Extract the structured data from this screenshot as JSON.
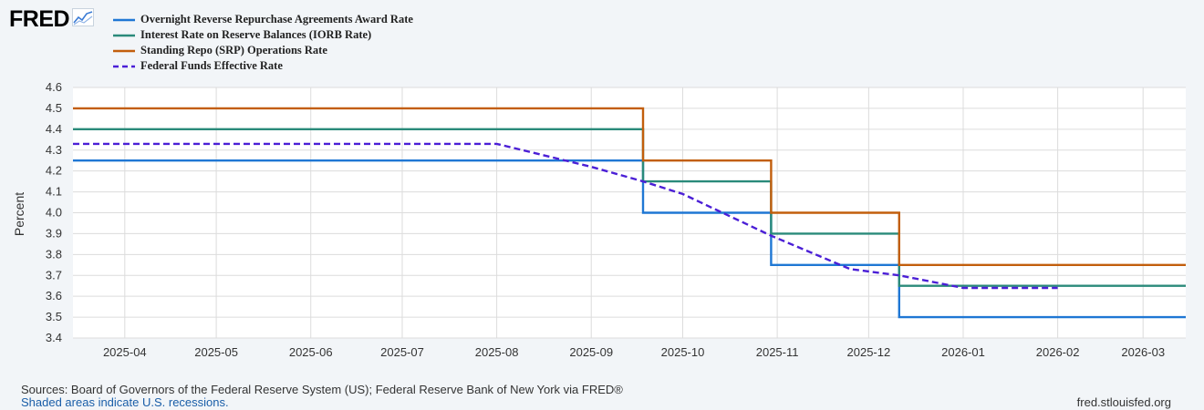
{
  "brand": {
    "logo_text": "FRED",
    "logo_icon": "chart-line-icon"
  },
  "chart_data": {
    "type": "line",
    "ylabel": "Percent",
    "ylim": [
      3.4,
      4.6
    ],
    "yticks": [
      "3.4",
      "3.5",
      "3.6",
      "3.7",
      "3.8",
      "3.9",
      "4.0",
      "4.1",
      "4.2",
      "4.3",
      "4.4",
      "4.5",
      "4.6"
    ],
    "xlim": [
      "2025-03-15",
      "2026-03-15"
    ],
    "xticks": [
      "2025-04",
      "2025-05",
      "2025-06",
      "2025-07",
      "2025-08",
      "2025-09",
      "2025-10",
      "2025-11",
      "2025-12",
      "2026-01",
      "2026-02",
      "2026-03"
    ],
    "grid": true,
    "legend_position": "top-left",
    "series": [
      {
        "name": "Overnight Reverse Repurchase Agreements Award Rate",
        "color": "#1f77d4",
        "style": "step",
        "points": [
          [
            "2025-03-15",
            4.25
          ],
          [
            "2025-09-18",
            4.25
          ],
          [
            "2025-09-18",
            4.0
          ],
          [
            "2025-10-30",
            4.0
          ],
          [
            "2025-10-30",
            3.75
          ],
          [
            "2025-12-11",
            3.75
          ],
          [
            "2025-12-11",
            3.5
          ],
          [
            "2026-03-15",
            3.5
          ]
        ]
      },
      {
        "name": "Interest Rate on Reserve Balances (IORB Rate)",
        "color": "#2a8a7a",
        "style": "step",
        "points": [
          [
            "2025-03-15",
            4.4
          ],
          [
            "2025-09-18",
            4.4
          ],
          [
            "2025-09-18",
            4.15
          ],
          [
            "2025-10-30",
            4.15
          ],
          [
            "2025-10-30",
            3.9
          ],
          [
            "2025-12-11",
            3.9
          ],
          [
            "2025-12-11",
            3.65
          ],
          [
            "2026-03-15",
            3.65
          ]
        ]
      },
      {
        "name": "Standing Repo (SRP) Operations Rate",
        "color": "#c25e0c",
        "style": "step",
        "points": [
          [
            "2025-03-15",
            4.5
          ],
          [
            "2025-09-18",
            4.5
          ],
          [
            "2025-09-18",
            4.25
          ],
          [
            "2025-10-30",
            4.25
          ],
          [
            "2025-10-30",
            4.0
          ],
          [
            "2025-12-11",
            4.0
          ],
          [
            "2025-12-11",
            3.75
          ],
          [
            "2026-03-15",
            3.75
          ]
        ]
      },
      {
        "name": "Federal Funds Effective Rate",
        "color": "#4b1fd6",
        "style": "dashed",
        "points": [
          [
            "2025-03-15",
            4.33
          ],
          [
            "2025-08-01",
            4.33
          ],
          [
            "2025-09-01",
            4.22
          ],
          [
            "2025-09-18",
            4.15
          ],
          [
            "2025-10-01",
            4.09
          ],
          [
            "2025-10-30",
            3.89
          ],
          [
            "2025-11-25",
            3.73
          ],
          [
            "2025-12-11",
            3.7
          ],
          [
            "2026-01-01",
            3.64
          ],
          [
            "2026-02-01",
            3.64
          ]
        ]
      }
    ]
  },
  "footer": {
    "sources": "Sources: Board of Governors of the Federal Reserve System (US); Federal Reserve Bank of New York via FRED®",
    "recession_note": "Shaded areas indicate U.S. recessions.",
    "url": "fred.stlouisfed.org"
  }
}
